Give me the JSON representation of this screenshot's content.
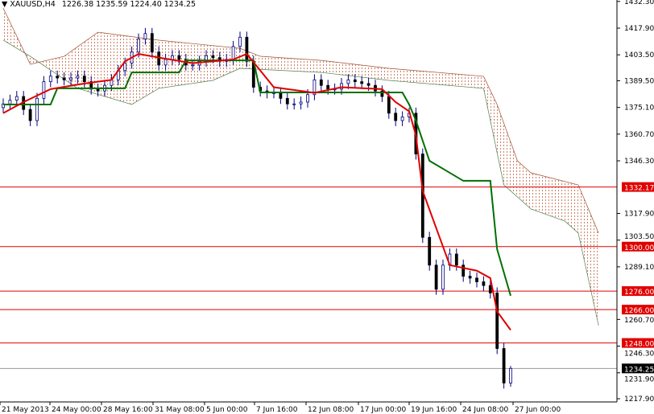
{
  "header": {
    "symbol": "XAUUSD,H4",
    "ohlc": "1226.38 1235.59 1224.40 1234.25"
  },
  "chart_data": {
    "type": "candlestick",
    "ylim": [
      1212,
      1435
    ],
    "y_ticks": [
      "1432.30",
      "1417.90",
      "1403.50",
      "1389.50",
      "1375.10",
      "1360.70",
      "1346.30",
      "1317.90",
      "1303.50",
      "1289.10",
      "1260.70",
      "1246.30",
      "1231.90",
      "1217.90"
    ],
    "x_ticks": [
      "21 May 2013",
      "24 May 00:00",
      "28 May 16:00",
      "31 May 08:00",
      "5 Jun 00:00",
      "7 Jun 16:00",
      "12 Jun 08:00",
      "17 Jun 00:00",
      "19 Jun 16:00",
      "24 Jun 08:00",
      "27 Jun 00:00"
    ],
    "closes": [
      1377,
      1379,
      1381,
      1374,
      1368,
      1380,
      1389,
      1392,
      1391,
      1390,
      1391,
      1392,
      1389,
      1385,
      1384,
      1387,
      1390,
      1395,
      1399,
      1405,
      1412,
      1415,
      1405,
      1398,
      1401,
      1403,
      1401,
      1398,
      1398,
      1400,
      1403,
      1402,
      1400,
      1401,
      1408,
      1413,
      1400,
      1386,
      1384,
      1383,
      1383,
      1380,
      1377,
      1377,
      1378,
      1382,
      1390,
      1387,
      1385,
      1385,
      1388,
      1390,
      1389,
      1388,
      1387,
      1384,
      1381,
      1372,
      1368,
      1370,
      1372,
      1350,
      1305,
      1290,
      1277,
      1290,
      1296,
      1290,
      1284,
      1283,
      1281,
      1279,
      1275,
      1245,
      1226.38,
      1234.25
    ],
    "last_bar": {
      "open": 1226.38,
      "high": 1235.59,
      "low": 1224.4,
      "close": 1234.25
    },
    "tenkan": [
      [
        0,
        1372
      ],
      [
        3,
        1378
      ],
      [
        7,
        1385
      ],
      [
        12,
        1388
      ],
      [
        16,
        1390
      ],
      [
        18,
        1400
      ],
      [
        20,
        1404
      ],
      [
        23,
        1402
      ],
      [
        28,
        1399
      ],
      [
        34,
        1401
      ],
      [
        36,
        1404
      ],
      [
        38,
        1395
      ],
      [
        40,
        1386
      ],
      [
        46,
        1383
      ],
      [
        50,
        1386
      ],
      [
        56,
        1385
      ],
      [
        58,
        1378
      ],
      [
        60,
        1373
      ],
      [
        61,
        1360
      ],
      [
        62,
        1330
      ],
      [
        64,
        1310
      ],
      [
        66,
        1290
      ],
      [
        70,
        1287
      ],
      [
        72,
        1283
      ],
      [
        73,
        1265
      ],
      [
        75,
        1255
      ]
    ],
    "kijun": [
      [
        0,
        1376.7
      ],
      [
        7,
        1376.7
      ],
      [
        8,
        1385.4
      ],
      [
        18,
        1385.4
      ],
      [
        19,
        1394
      ],
      [
        26,
        1394
      ],
      [
        27,
        1400.5
      ],
      [
        37,
        1400.5
      ],
      [
        38,
        1383.2
      ],
      [
        59,
        1383.2
      ],
      [
        60,
        1376.7
      ],
      [
        61,
        1368
      ],
      [
        63,
        1346.3
      ],
      [
        65,
        1342
      ],
      [
        68,
        1335.5
      ],
      [
        72,
        1335.5
      ],
      [
        73,
        1298.6
      ],
      [
        75,
        1273.5
      ]
    ],
    "cloud_upper": [
      [
        0,
        1428.7
      ],
      [
        4,
        1398.4
      ],
      [
        9,
        1402.7
      ],
      [
        14,
        1415.7
      ],
      [
        23,
        1411.4
      ],
      [
        35,
        1407
      ],
      [
        38,
        1402.7
      ],
      [
        47,
        1400.5
      ],
      [
        57,
        1396.2
      ],
      [
        71,
        1391.9
      ],
      [
        73,
        1376.7
      ],
      [
        76,
        1346.3
      ],
      [
        78,
        1339.8
      ],
      [
        85,
        1333.3
      ],
      [
        88,
        1307.3
      ]
    ],
    "cloud_lower": [
      [
        0,
        1411.4
      ],
      [
        4,
        1402.7
      ],
      [
        11,
        1385.4
      ],
      [
        19,
        1376.7
      ],
      [
        23,
        1385.4
      ],
      [
        31,
        1389.7
      ],
      [
        35,
        1396.2
      ],
      [
        47,
        1394
      ],
      [
        57,
        1389.7
      ],
      [
        71,
        1385.4
      ],
      [
        74,
        1333.3
      ],
      [
        78,
        1320.3
      ],
      [
        83,
        1313.8
      ],
      [
        85,
        1307.3
      ],
      [
        88,
        1257.4
      ]
    ],
    "levels": [
      {
        "label": "1332.17",
        "value": 1332.17
      },
      {
        "label": "1300.00",
        "value": 1300
      },
      {
        "label": "1276.00",
        "value": 1276
      },
      {
        "label": "1266.00",
        "value": 1266
      },
      {
        "label": "1248.00",
        "value": 1248
      }
    ],
    "bid": {
      "label": "1234.25",
      "value": 1234.25
    },
    "colors": {
      "tenkan": "#e00000",
      "kijun": "#007000",
      "cloud": "#c06040",
      "level": "#e00000",
      "candle": "#000080",
      "bid": "#000000"
    }
  }
}
